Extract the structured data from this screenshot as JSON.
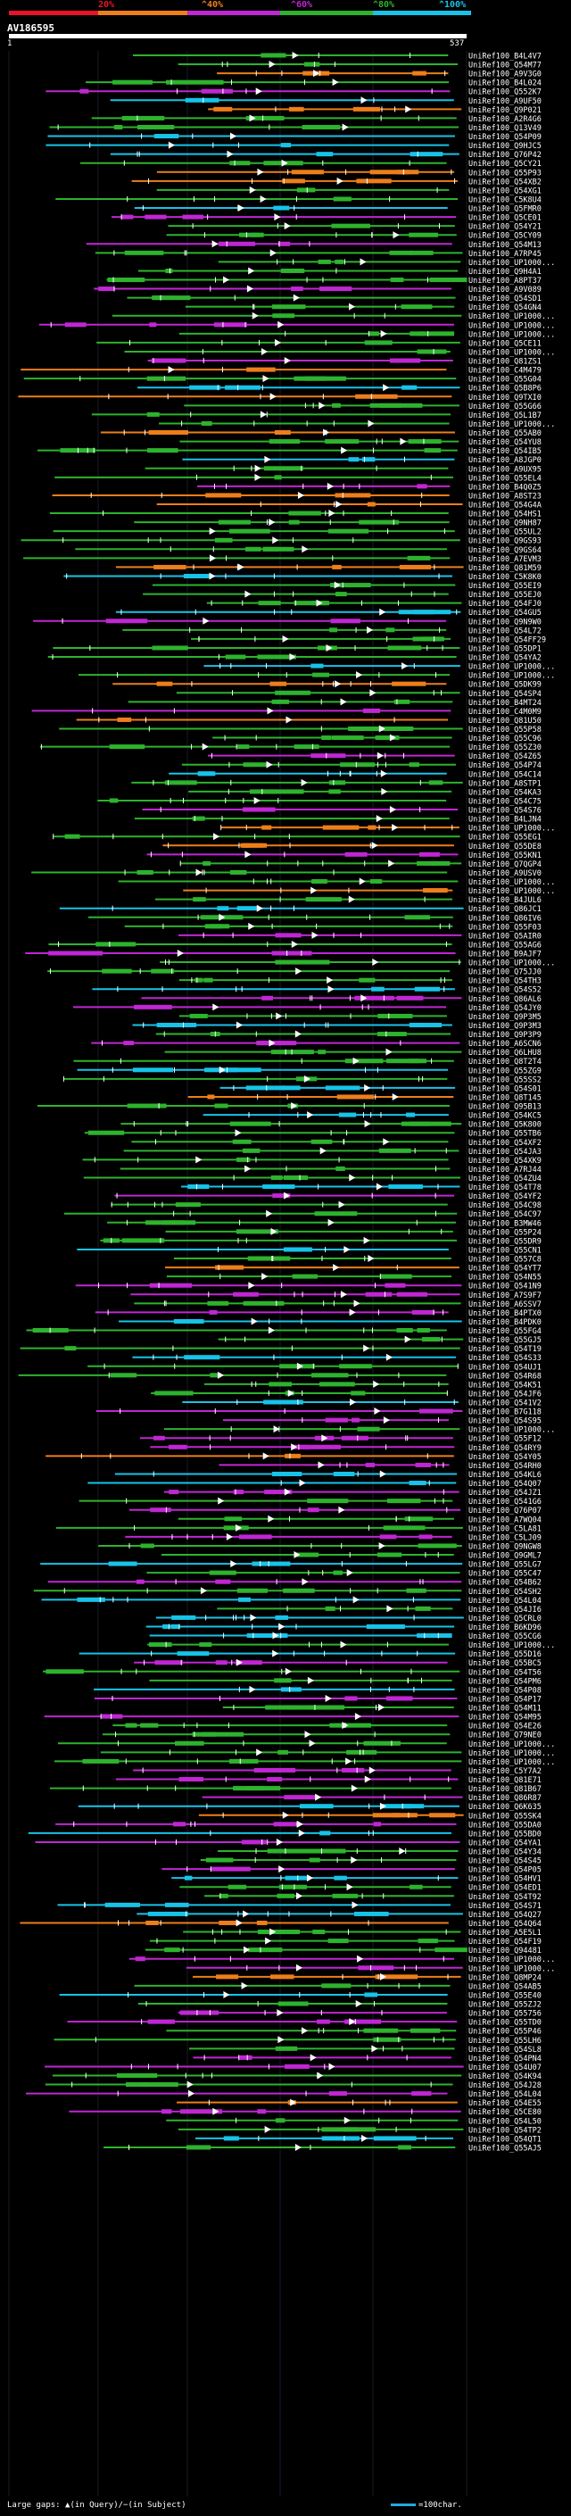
{
  "legend": {
    "labels": [
      "20%",
      "^40%",
      "^60%",
      "^80%",
      "^100%"
    ],
    "colors": [
      "#e8132a",
      "#ee7e1a",
      "#c026d3",
      "#2db32d",
      "#17c3e8"
    ]
  },
  "query": {
    "name": "AV186595",
    "start": "1",
    "end": "537"
  },
  "hits": [
    "UniRef100_B4L4V7",
    "UniRef100_Q54M77",
    "UniRef100_A9V3G0",
    "UniRef100_B4L024",
    "UniRef100_Q552K7",
    "UniRef100_A9UF50",
    "UniRef100_Q9P021",
    "UniRef100_A2R4G6",
    "UniRef100_Q13V49",
    "UniRef100_Q54P09",
    "UniRef100_Q9HJC5",
    "UniRef100_Q76P42",
    "UniRef100_Q5CY21",
    "UniRef100_Q55P93",
    "UniRef100_Q54XB2",
    "UniRef100_Q54XG1",
    "UniRef100_C5K8U4",
    "UniRef100_Q5FMR0",
    "UniRef100_Q5CE01",
    "UniRef100_Q54Y21",
    "UniRef100_Q5CY09",
    "UniRef100_Q54M13",
    "UniRef100_A7RP45",
    "UniRef100_UP1000...",
    "UniRef100_Q9H4A1",
    "UniRef100_A8PT37",
    "UniRef100_A9V089",
    "UniRef100_Q54SD1",
    "UniRef100_Q54GN4",
    "UniRef100_UP1000...",
    "UniRef100_UP1000...",
    "UniRef100_UP1000...",
    "UniRef100_Q5CE11",
    "UniRef100_UP1000...",
    "UniRef100_Q81ZS1",
    "UniRef100_C4M479",
    "UniRef100_Q55G04",
    "UniRef100_Q5B8P6",
    "UniRef100_Q9TXI0",
    "UniRef100_Q55G66",
    "UniRef100_Q5L1B7",
    "UniRef100_UP1000...",
    "UniRef100_Q55AB0",
    "UniRef100_Q54YU8",
    "UniRef100_Q54IB5",
    "UniRef100_A8JGP0",
    "UniRef100_A9UX95",
    "UniRef100_Q55EL4",
    "UniRef100_B4Q0Z5",
    "UniRef100_A8ST23",
    "UniRef100_Q54G4A",
    "UniRef100_Q54HS1",
    "UniRef100_Q9NH87",
    "UniRef100_Q55UL2",
    "UniRef100_Q9GS93",
    "UniRef100_Q9GS64",
    "UniRef100_A7EVM3",
    "UniRef100_Q81M59",
    "UniRef100_C5K8K0",
    "UniRef100_Q55EI9",
    "UniRef100_Q55EJ0",
    "UniRef100_Q54FJ0",
    "UniRef100_Q54GU5",
    "UniRef100_Q9N9W0",
    "UniRef100_Q54L72",
    "UniRef100_Q54FF29",
    "UniRef100_Q55DP1",
    "UniRef100_Q54YA2",
    "UniRef100_UP1000...",
    "UniRef100_UP1000...",
    "UniRef100_Q5DK99",
    "UniRef100_Q54SP4",
    "UniRef100_B4MT24",
    "UniRef100_C4M0M9",
    "UniRef100_Q81U50",
    "UniRef100_Q55P58",
    "UniRef100_Q55C96",
    "UniRef100_Q55Z30",
    "UniRef100_Q54Z65",
    "UniRef100_Q54P74",
    "UniRef100_Q54C14",
    "UniRef100_A8STP1",
    "UniRef100_Q54KA3",
    "UniRef100_Q54C75",
    "UniRef100_Q54S76",
    "UniRef100_B4LJN4",
    "UniRef100_UP1000...",
    "UniRef100_Q55EG1",
    "UniRef100_Q55DE8",
    "UniRef100_Q55KN1",
    "UniRef100_Q7QGP4",
    "UniRef100_A9USV0",
    "UniRef100_UP1000...",
    "UniRef100_UP1000...",
    "UniRef100_B4JUL6",
    "UniRef100_Q86JC1",
    "UniRef100_Q86IV6",
    "UniRef100_Q55F03",
    "UniRef100_Q5AIR0",
    "UniRef100_Q55AG6",
    "UniRef100_B9AJF7",
    "UniRef100_UP1000...",
    "UniRef100_Q75JJ0",
    "UniRef100_Q54TH3",
    "UniRef100_Q54S52",
    "UniRef100_Q86AL6",
    "UniRef100_Q54JY0",
    "UniRef100_Q9P3M5",
    "UniRef100_Q9P3M3",
    "UniRef100_Q9P3P9",
    "UniRef100_A6SCN6",
    "UniRef100_Q6LHU8",
    "UniRef100_Q8T2T4",
    "UniRef100_Q55ZG9",
    "UniRef100_Q55SS2",
    "UniRef100_Q54S01",
    "UniRef100_Q8T145",
    "UniRef100_Q95B13",
    "UniRef100_Q54KC5",
    "UniRef100_Q5K800",
    "UniRef100_Q55TB6",
    "UniRef100_Q54XF2",
    "UniRef100_Q54JA3",
    "UniRef100_Q54XK9",
    "UniRef100_A7RJ44",
    "UniRef100_Q54ZU4",
    "UniRef100_Q54T78",
    "UniRef100_Q54YF2",
    "UniRef100_Q54C98",
    "UniRef100_Q54C97",
    "UniRef100_B3MW46",
    "UniRef100_Q55P24",
    "UniRef100_Q55DR9",
    "UniRef100_Q55CN1",
    "UniRef100_Q557C8",
    "UniRef100_Q54YT7",
    "UniRef100_Q54N55",
    "UniRef100_Q541N9",
    "UniRef100_A7S9F7",
    "UniRef100_A6SSV7",
    "UniRef100_B4PTX0",
    "UniRef100_B4PDK0",
    "UniRef100_Q55FG4",
    "UniRef100_Q55GJ5",
    "UniRef100_Q54T19",
    "UniRef100_Q54S33",
    "UniRef100_Q54UJ1",
    "UniRef100_Q54R68",
    "UniRef100_Q54K51",
    "UniRef100_Q54JF6",
    "UniRef100_Q541V2",
    "UniRef100_B7G118",
    "UniRef100_Q54S95",
    "UniRef100_UP1000...",
    "UniRef100_Q55F12",
    "UniRef100_Q54RY9",
    "UniRef100_Q54Y05",
    "UniRef100_Q54RH0",
    "UniRef100_Q54KL6",
    "UniRef100_Q54Q07",
    "UniRef100_Q54JZ1",
    "UniRef100_Q541G6",
    "UniRef100_Q76P07",
    "UniRef100_A7WQ04",
    "UniRef100_C5LA81",
    "UniRef100_C5LJ09",
    "UniRef100_Q9NGW8",
    "UniRef100_Q9GML7",
    "UniRef100_Q55LG7",
    "UniRef100_Q55C47",
    "UniRef100_Q54B62",
    "UniRef100_Q54SH2",
    "UniRef100_Q54L04",
    "UniRef100_Q54JI6",
    "UniRef100_Q5CRL0",
    "UniRef100_B6KD96",
    "UniRef100_Q55CG6",
    "UniRef100_UP1000...",
    "UniRef100_Q55D16",
    "UniRef100_Q55BC5",
    "UniRef100_Q54T56",
    "UniRef100_Q54PM6",
    "UniRef100_Q54P08",
    "UniRef100_Q54P17",
    "UniRef100_Q54M11",
    "UniRef100_Q54M95",
    "UniRef100_Q54E26",
    "UniRef100_Q79NE0",
    "UniRef100_UP1000...",
    "UniRef100_UP1000...",
    "UniRef100_UP1000...",
    "UniRef100_C5Y7A2",
    "UniRef100_Q81E71",
    "UniRef100_Q81B67",
    "UniRef100_Q86R87",
    "UniRef100_Q6K635",
    "UniRef100_Q55SK4",
    "UniRef100_Q55DA0",
    "UniRef100_Q55BD0",
    "UniRef100_Q54YA1",
    "UniRef100_Q54Y34",
    "UniRef100_Q54S45",
    "UniRef100_Q54P05",
    "UniRef100_Q54HV1",
    "UniRef100_Q54ED1",
    "UniRef100_Q54T92",
    "UniRef100_Q54S71",
    "UniRef100_Q54Q27",
    "UniRef100_Q54Q64",
    "UniRef100_A5E5L1",
    "UniRef100_Q54F19",
    "UniRef100_Q94481",
    "UniRef100_UP1000...",
    "UniRef100_UP1000...",
    "UniRef100_Q8MP24",
    "UniRef100_Q54AB5",
    "UniRef100_Q55E40",
    "UniRef100_Q55ZJ2",
    "UniRef100_Q55756",
    "UniRef100_Q55TD0",
    "UniRef100_Q55P46",
    "UniRef100_Q55LH6",
    "UniRef100_Q54SL8",
    "UniRef100_Q54PN4",
    "UniRef100_Q54U07",
    "UniRef100_Q54K94",
    "UniRef100_Q54J28",
    "UniRef100_Q54L04",
    "UniRef100_Q54E55",
    "UniRef100_Q5CE80",
    "UniRef100_Q54L50",
    "UniRef100_Q54TP2",
    "UniRef100_Q54QT1",
    "UniRef100_Q55AJ5"
  ],
  "footer": {
    "gaps": "Large gaps: ▲(in Query)/−(in Subject)",
    "scale": "=100char."
  }
}
